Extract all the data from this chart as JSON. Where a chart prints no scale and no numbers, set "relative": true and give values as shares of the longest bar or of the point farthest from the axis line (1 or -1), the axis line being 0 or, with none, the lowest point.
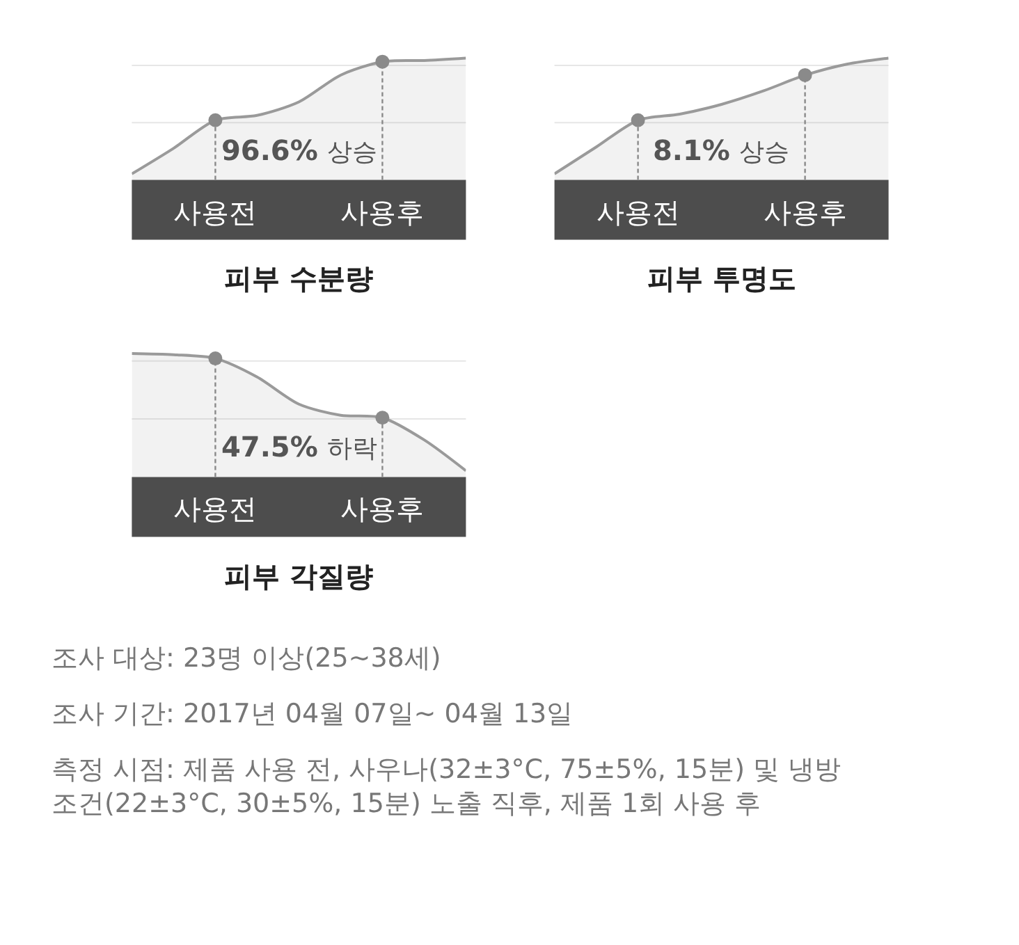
{
  "chart_data": [
    {
      "type": "area",
      "relative": true,
      "title": "피부 수분량",
      "categories": [
        null,
        null,
        "사용전",
        null,
        null,
        null,
        "사용후",
        null,
        null
      ],
      "series": [
        {
          "color": "#9a9a9a",
          "values": [
            0.05,
            0.26,
            0.49,
            0.53,
            0.64,
            0.86,
            0.97,
            0.98,
            1.0
          ]
        },
        {
          "type": "lollipop",
          "color": "#8a8a8a",
          "marker": "circle",
          "line_style": "dashed",
          "values": [
            null,
            null,
            0.49,
            null,
            null,
            null,
            0.97,
            null,
            null
          ]
        }
      ],
      "ref_lines": [
        {
          "axis": "y",
          "value": 0.47,
          "color": "#e6e6e6"
        },
        {
          "axis": "y",
          "value": 0.94,
          "color": "#e6e6e6"
        }
      ],
      "annotations": [
        "96.6% 상승"
      ]
    },
    {
      "type": "area",
      "relative": true,
      "title": "피부 투명도",
      "categories": [
        null,
        null,
        "사용전",
        null,
        null,
        null,
        "사용후",
        null,
        null
      ],
      "series": [
        {
          "color": "#9a9a9a",
          "values": [
            0.05,
            0.27,
            0.49,
            0.54,
            0.62,
            0.73,
            0.86,
            0.95,
            1.0
          ]
        },
        {
          "type": "lollipop",
          "color": "#8a8a8a",
          "marker": "circle",
          "line_style": "dashed",
          "values": [
            null,
            null,
            0.49,
            null,
            null,
            null,
            0.86,
            null,
            null
          ]
        }
      ],
      "ref_lines": [
        {
          "axis": "y",
          "value": 0.47,
          "color": "#e6e6e6"
        },
        {
          "axis": "y",
          "value": 0.94,
          "color": "#e6e6e6"
        }
      ],
      "annotations": [
        "8.1% 상승"
      ]
    },
    {
      "type": "area",
      "relative": true,
      "title": "피부 각질량",
      "categories": [
        null,
        null,
        "사용전",
        null,
        null,
        null,
        "사용후",
        null,
        null
      ],
      "series": [
        {
          "color": "#9a9a9a",
          "values": [
            1.0,
            0.99,
            0.96,
            0.81,
            0.59,
            0.5,
            0.48,
            0.3,
            0.05
          ]
        },
        {
          "type": "lollipop",
          "color": "#8a8a8a",
          "marker": "circle",
          "line_style": "dashed",
          "values": [
            null,
            null,
            0.96,
            null,
            null,
            null,
            0.48,
            null,
            null
          ]
        }
      ],
      "ref_lines": [
        {
          "axis": "y",
          "value": 0.47,
          "color": "#e6e6e6"
        },
        {
          "axis": "y",
          "value": 0.94,
          "color": "#e6e6e6"
        }
      ],
      "annotations": [
        "47.5% 하락",
        "조사 대상: 23명 이상(25~38세)",
        "조사 기간: 2017년 04월 07일~ 04월 13일",
        "측정 시점: 제품 사용 전, 사우나(32±3°C, 75±5%, 15분) 및 냉방\n조건(22±3°C, 30±5%, 15분) 노출 직후, 제품 1회 사용 후"
      ]
    }
  ]
}
